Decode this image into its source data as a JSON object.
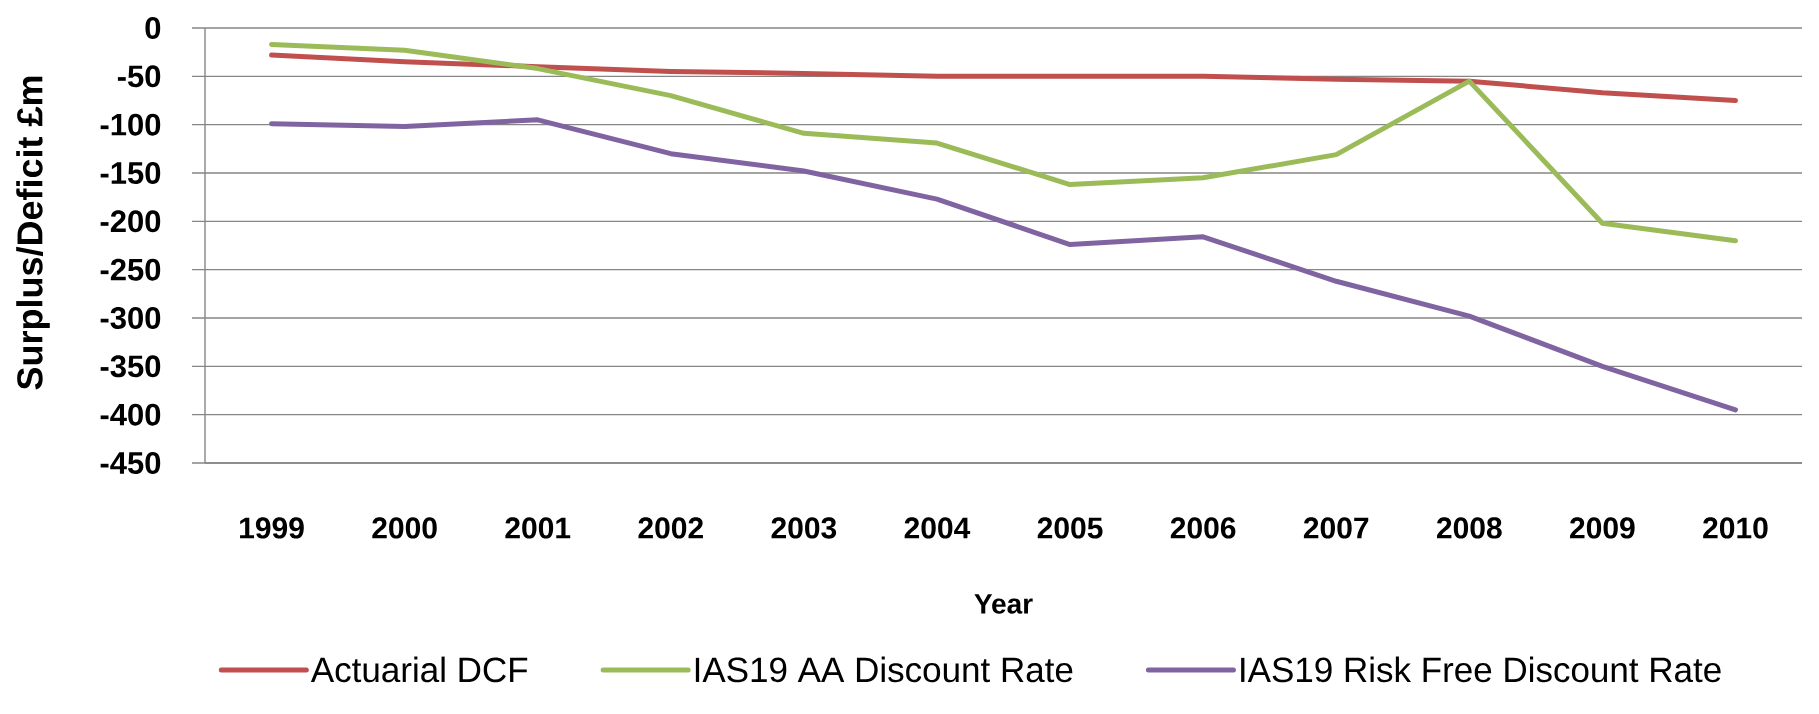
{
  "chart_data": {
    "type": "line",
    "xlabel": "Year",
    "ylabel": "Surplus/Deficit £m",
    "categories": [
      "1999",
      "2000",
      "2001",
      "2002",
      "2003",
      "2004",
      "2005",
      "2006",
      "2007",
      "2008",
      "2009",
      "2010"
    ],
    "series": [
      {
        "name": "Actuarial DCF",
        "color": "#c0504d",
        "values": [
          -28,
          -35,
          -40,
          -45,
          -47,
          -50,
          -50,
          -50,
          -53,
          -55,
          -67,
          -75
        ]
      },
      {
        "name": "IAS19 AA Discount Rate",
        "color": "#9bbb59",
        "values": [
          -17,
          -23,
          -42,
          -70,
          -109,
          -119,
          -162,
          -155,
          -131,
          -55,
          -202,
          -220
        ]
      },
      {
        "name": "IAS19 Risk Free Discount Rate",
        "color": "#8064a2",
        "values": [
          -99,
          -102,
          -95,
          -130,
          -148,
          -177,
          -224,
          -216,
          -262,
          -298,
          -350,
          -395
        ]
      }
    ],
    "ylim": [
      -450,
      0
    ],
    "yticks": [
      -450,
      -400,
      -350,
      -300,
      -250,
      -200,
      -150,
      -100,
      -50,
      0
    ],
    "grid": "y",
    "legend": "bottom"
  }
}
